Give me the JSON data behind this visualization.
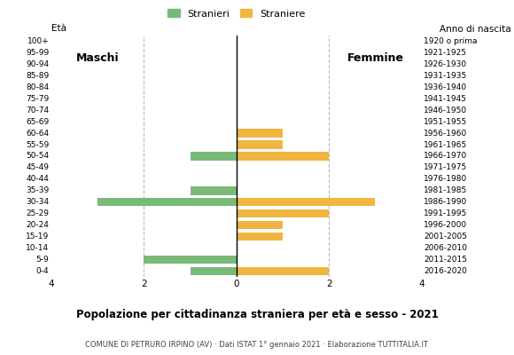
{
  "age_groups": [
    "100+",
    "95-99",
    "90-94",
    "85-89",
    "80-84",
    "75-79",
    "70-74",
    "65-69",
    "60-64",
    "55-59",
    "50-54",
    "45-49",
    "40-44",
    "35-39",
    "30-34",
    "25-29",
    "20-24",
    "15-19",
    "10-14",
    "5-9",
    "0-4"
  ],
  "birth_years": [
    "1920 o prima",
    "1921-1925",
    "1926-1930",
    "1931-1935",
    "1936-1940",
    "1941-1945",
    "1946-1950",
    "1951-1955",
    "1956-1960",
    "1961-1965",
    "1966-1970",
    "1971-1975",
    "1976-1980",
    "1981-1985",
    "1986-1990",
    "1991-1995",
    "1996-2000",
    "2001-2005",
    "2006-2010",
    "2011-2015",
    "2016-2020"
  ],
  "males": [
    0,
    0,
    0,
    0,
    0,
    0,
    0,
    0,
    0,
    0,
    1,
    0,
    0,
    1,
    3,
    0,
    0,
    0,
    0,
    2,
    1
  ],
  "females": [
    0,
    0,
    0,
    0,
    0,
    0,
    0,
    0,
    1,
    1,
    2,
    0,
    0,
    0,
    3,
    2,
    1,
    1,
    0,
    0,
    2
  ],
  "male_color": "#7aba78",
  "female_color": "#f0b640",
  "title": "Popolazione per cittadinanza straniera per età e sesso - 2021",
  "subtitle": "COMUNE DI PETRURO IRPINO (AV) · Dati ISTAT 1° gennaio 2021 · Elaborazione TUTTITALIA.IT",
  "legend_male": "Stranieri",
  "legend_female": "Straniere",
  "label_maschi": "Maschi",
  "label_femmine": "Femmine",
  "ylabel_left": "Età",
  "ylabel_right": "Anno di nascita",
  "xlim": 4,
  "background_color": "#ffffff",
  "grid_color": "#bbbbbb"
}
